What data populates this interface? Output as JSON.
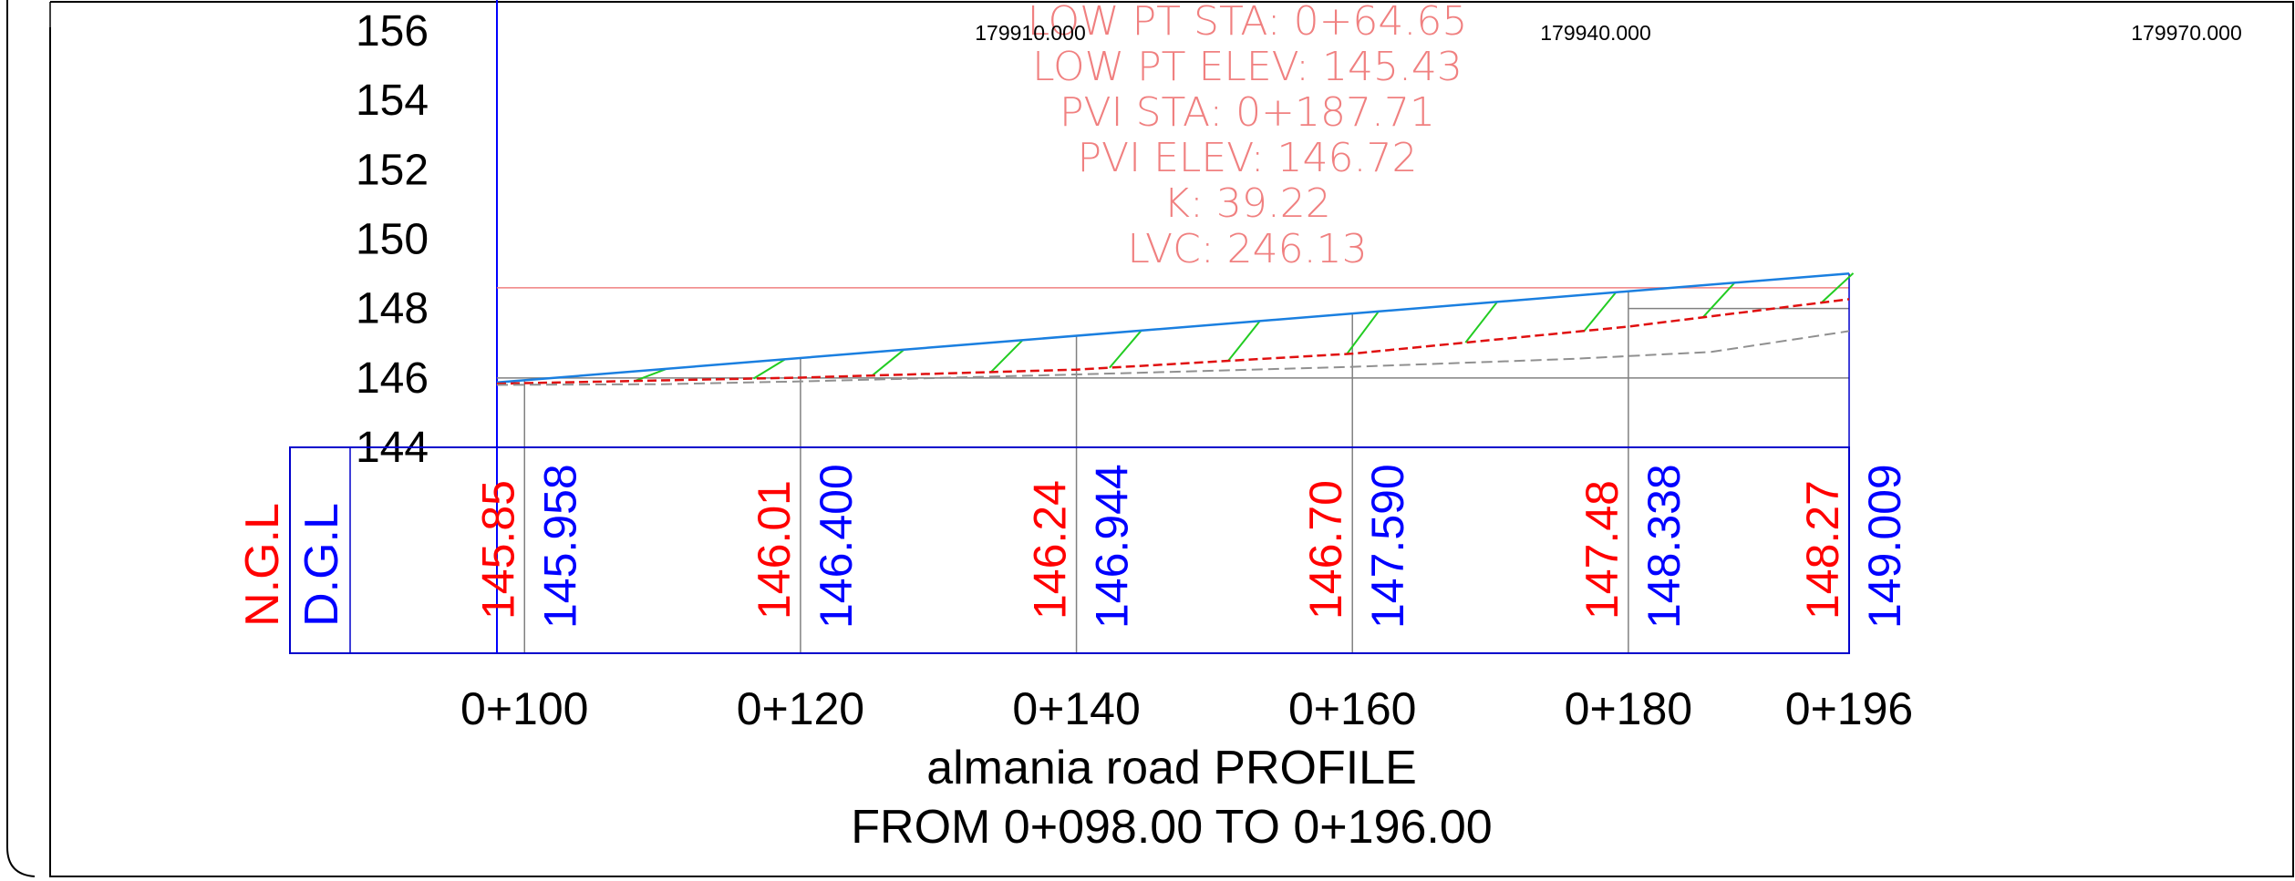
{
  "chart_data": {
    "type": "line",
    "title": "almania road PROFILE",
    "subtitle": "FROM 0+098.00 TO 0+196.00",
    "ylim": [
      144,
      156
    ],
    "y_ticks": [
      "144",
      "146",
      "148",
      "150",
      "152",
      "154",
      "156"
    ],
    "x_range": [
      98,
      196
    ],
    "station_ticks": [
      {
        "station": 100,
        "label": "0+100"
      },
      {
        "station": 120,
        "label": "0+120"
      },
      {
        "station": 140,
        "label": "0+140"
      },
      {
        "station": 160,
        "label": "0+160"
      },
      {
        "station": 180,
        "label": "0+180"
      },
      {
        "station": 196,
        "label": "0+196"
      }
    ],
    "coordinate_labels": [
      "179910.000",
      "179940.000",
      "179970.000"
    ],
    "band_labels": {
      "ngl": "N.G.L",
      "dgl": "D.G.L"
    },
    "table_rows": [
      {
        "station": 100,
        "ngl": "145.85",
        "dgl": "145.958"
      },
      {
        "station": 120,
        "ngl": "146.01",
        "dgl": "146.400"
      },
      {
        "station": 140,
        "ngl": "146.24",
        "dgl": "146.944"
      },
      {
        "station": 160,
        "ngl": "146.70",
        "dgl": "147.590"
      },
      {
        "station": 180,
        "ngl": "147.48",
        "dgl": "148.338"
      },
      {
        "station": 196,
        "ngl": "148.27",
        "dgl": "149.009"
      }
    ],
    "series": [
      {
        "key": "design",
        "x": [
          98,
          196
        ],
        "y": [
          145.87,
          149.01
        ]
      },
      {
        "key": "natural",
        "x": [
          98,
          100,
          120,
          140,
          160,
          180,
          196
        ],
        "y": [
          145.83,
          145.85,
          146.01,
          146.24,
          146.7,
          147.48,
          148.27
        ]
      },
      {
        "key": "existing",
        "x": [
          98,
          110,
          120,
          140,
          160,
          176,
          186,
          196
        ],
        "y": [
          145.8,
          145.82,
          145.9,
          146.1,
          146.32,
          146.55,
          146.75,
          147.35
        ]
      }
    ],
    "curve_labels": [
      "LOW PT STA:  0+64.65",
      "LOW PT ELEV:  145.43",
      "PVI  STA: 0+187.71",
      "PVI  ELEV: 146.72",
      "K: 39.22",
      "LVC: 246.13"
    ],
    "colors": {
      "design": "#1a7fe0",
      "natural": "#e01010",
      "existing": "#909090",
      "hatch": "#22cc22",
      "curve_text": "#f08080",
      "ngl_text": "#ff0000",
      "dgl_text": "#0000ff",
      "table_border": "#0000cc",
      "grid": "#808080"
    }
  }
}
